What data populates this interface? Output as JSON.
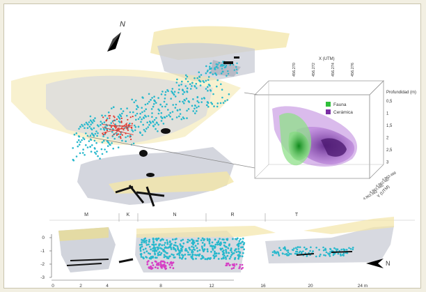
{
  "north_symbol": "N",
  "cube": {
    "x_axis_label": "X (UTM)",
    "x_ticks": [
      "456.270",
      "456.272",
      "456.274",
      "456.276"
    ],
    "z_axis_label": "Profundidad (m)",
    "z_ticks": [
      "0,5",
      "1",
      "1,5",
      "2",
      "2,5",
      "3"
    ],
    "y_axis_label": "Y (UTM)",
    "y_ticks": [
      "4.863.489",
      "4.863.487",
      "4.863.485",
      "4.863.483"
    ]
  },
  "legend": [
    {
      "label": "Fauna",
      "color": "#2fbf3a"
    },
    {
      "label": "Cerámica",
      "color": "#7b2fa4"
    }
  ],
  "section": {
    "zones": [
      "M",
      "K",
      "N",
      "R",
      "T"
    ],
    "y_ticks": [
      "0",
      "-1",
      "-2",
      "-3"
    ],
    "x_ticks": [
      "0",
      "2",
      "4",
      "8",
      "12",
      "16",
      "20",
      "24 m"
    ],
    "north_symbol": "N"
  },
  "colors": {
    "cyan": "#27b8cc",
    "red": "#e0322a",
    "black": "#111111",
    "magenta": "#d63fc5",
    "yellow_surface": "#f3e6a8",
    "grey_surface": "#c9ccd6"
  }
}
